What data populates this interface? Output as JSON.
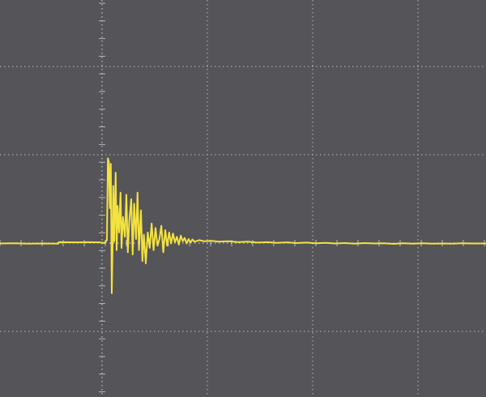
{
  "colors": {
    "screen": "#555459",
    "grid": "#cfcfcf",
    "trace": "#f3e23f"
  },
  "chart_data": {
    "type": "line",
    "title": "",
    "xlabel": "",
    "ylabel": "",
    "grid": true,
    "grid_divisions": {
      "x": 10,
      "y": 8
    },
    "xlim": [
      0,
      10
    ],
    "ylim": [
      -4,
      4
    ],
    "series": [
      {
        "values": [
          [
            0.0,
            0.0
          ],
          [
            0.3,
            0.01
          ],
          [
            0.6,
            -0.01
          ],
          [
            0.9,
            0.0
          ],
          [
            1.2,
            -0.01
          ],
          [
            1.21,
            0.06
          ],
          [
            1.6,
            0.05
          ],
          [
            1.8,
            0.06
          ],
          [
            2.05,
            0.05
          ],
          [
            2.15,
            0.02
          ],
          [
            2.2,
            0.15
          ],
          [
            2.22,
            3.85
          ],
          [
            2.24,
            3.7
          ],
          [
            2.26,
            1.6
          ],
          [
            2.28,
            3.6
          ],
          [
            2.3,
            -2.25
          ],
          [
            2.32,
            0.4
          ],
          [
            2.33,
            2.6
          ],
          [
            2.35,
            0.1
          ],
          [
            2.38,
            3.2
          ],
          [
            2.4,
            -0.3
          ],
          [
            2.42,
            1.7
          ],
          [
            2.45,
            0.5
          ],
          [
            2.48,
            2.3
          ],
          [
            2.5,
            -0.2
          ],
          [
            2.53,
            1.2
          ],
          [
            2.57,
            0.3
          ],
          [
            2.6,
            2.2
          ],
          [
            2.63,
            -0.4
          ],
          [
            2.66,
            1.0
          ],
          [
            2.7,
            2.0
          ],
          [
            2.73,
            -0.5
          ],
          [
            2.76,
            1.8
          ],
          [
            2.8,
            0.2
          ],
          [
            2.83,
            2.3
          ],
          [
            2.86,
            -0.3
          ],
          [
            2.9,
            1.5
          ],
          [
            2.93,
            -0.8
          ],
          [
            2.96,
            0.4
          ],
          [
            3.0,
            -0.9
          ],
          [
            3.04,
            0.5
          ],
          [
            3.08,
            -0.2
          ],
          [
            3.12,
            0.9
          ],
          [
            3.16,
            -0.3
          ],
          [
            3.2,
            0.7
          ],
          [
            3.24,
            -0.1
          ],
          [
            3.28,
            0.2
          ],
          [
            3.32,
            0.8
          ],
          [
            3.36,
            -0.4
          ],
          [
            3.4,
            0.6
          ],
          [
            3.44,
            -0.1
          ],
          [
            3.48,
            0.5
          ],
          [
            3.52,
            0.0
          ],
          [
            3.56,
            0.45
          ],
          [
            3.6,
            0.05
          ],
          [
            3.64,
            0.3
          ],
          [
            3.68,
            -0.05
          ],
          [
            3.72,
            0.35
          ],
          [
            3.76,
            0.1
          ],
          [
            3.8,
            0.25
          ],
          [
            3.84,
            0.0
          ],
          [
            3.88,
            0.2
          ],
          [
            3.92,
            0.05
          ],
          [
            3.96,
            0.18
          ],
          [
            4.0,
            0.08
          ],
          [
            4.1,
            0.15
          ],
          [
            4.2,
            0.1
          ],
          [
            4.35,
            0.12
          ],
          [
            4.5,
            0.08
          ],
          [
            4.7,
            0.1
          ],
          [
            4.9,
            0.06
          ],
          [
            5.1,
            0.08
          ],
          [
            5.3,
            0.04
          ],
          [
            5.5,
            0.06
          ],
          [
            5.7,
            0.03
          ],
          [
            5.9,
            0.05
          ],
          [
            6.1,
            0.02
          ],
          [
            6.3,
            0.04
          ],
          [
            6.5,
            0.01
          ],
          [
            6.7,
            0.03
          ],
          [
            6.9,
            0.0
          ],
          [
            7.1,
            0.02
          ],
          [
            7.3,
            -0.01
          ],
          [
            7.5,
            0.02
          ],
          [
            7.7,
            0.0
          ],
          [
            7.9,
            0.01
          ],
          [
            8.1,
            -0.02
          ],
          [
            8.3,
            0.01
          ],
          [
            8.5,
            -0.01
          ],
          [
            8.7,
            0.01
          ],
          [
            8.9,
            -0.01
          ],
          [
            9.1,
            0.0
          ],
          [
            9.3,
            -0.01
          ],
          [
            9.5,
            0.01
          ],
          [
            9.7,
            0.0
          ],
          [
            10.0,
            0.0
          ]
        ]
      }
    ]
  }
}
